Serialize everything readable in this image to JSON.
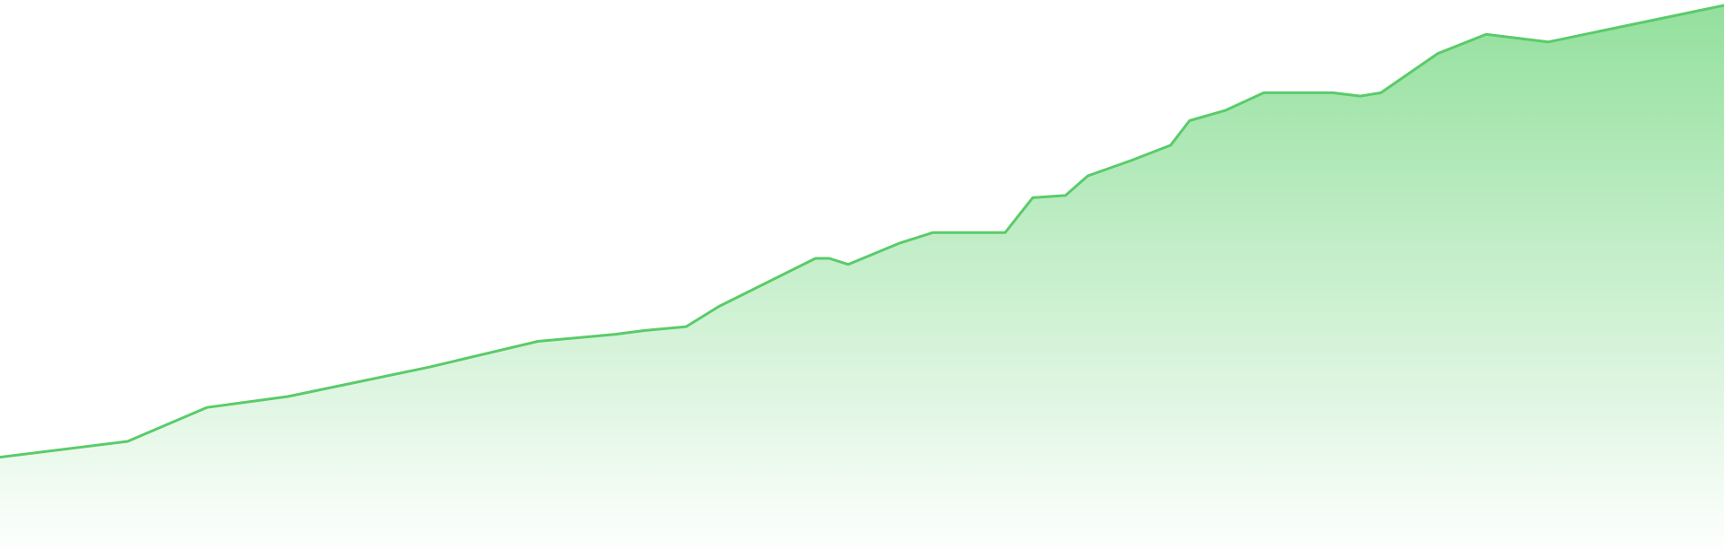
{
  "colors": {
    "line": "#5acb6a",
    "fill_top": "#93e09d",
    "fill_bottom": "#ffffff",
    "background": "#ffffff"
  },
  "chart_data": {
    "type": "area",
    "title": "",
    "xlabel": "",
    "ylabel": "",
    "grid": false,
    "legend": "none",
    "axes_visible": false,
    "xlim": [
      0,
      100
    ],
    "ylim": [
      0,
      100
    ],
    "x": [
      0,
      7.4,
      12.0,
      16.7,
      24.9,
      31.2,
      35.7,
      37.4,
      39.8,
      41.7,
      47.3,
      48.1,
      49.2,
      52.2,
      54.1,
      58.3,
      59.9,
      61.8,
      63.1,
      65.6,
      67.9,
      69.0,
      71.1,
      73.3,
      77.3,
      78.9,
      80.1,
      83.4,
      86.2,
      89.8,
      100
    ],
    "values": [
      17.3,
      20.2,
      26.4,
      28.4,
      33.8,
      38.5,
      39.8,
      40.5,
      41.2,
      44.9,
      53.7,
      53.7,
      52.6,
      56.5,
      58.4,
      58.4,
      64.8,
      65.2,
      68.8,
      71.6,
      74.4,
      78.9,
      80.8,
      84.0,
      84.0,
      83.4,
      84.0,
      91.2,
      94.7,
      93.3,
      100
    ]
  }
}
